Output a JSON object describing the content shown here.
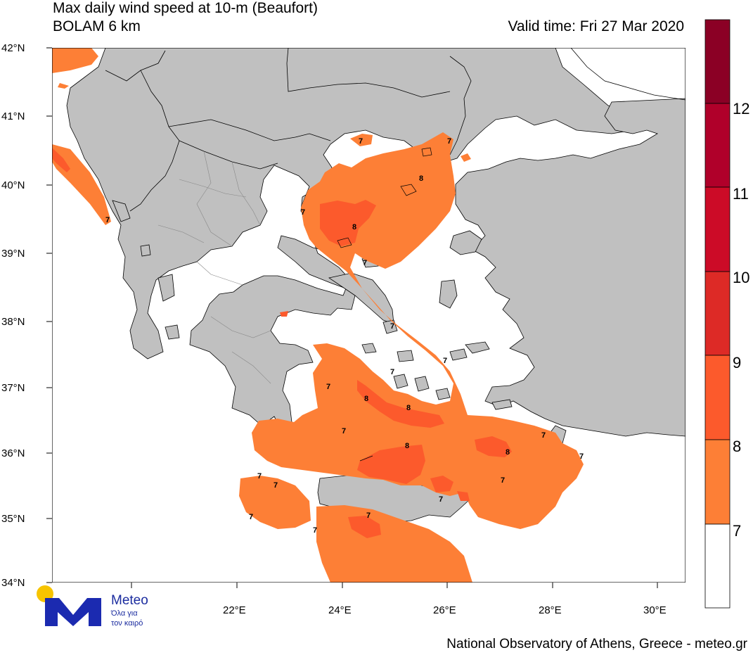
{
  "header": {
    "title_line1": "Max daily wind speed at 10-m (Beaufort)",
    "title_line2": "BOLAM 6 km",
    "valid_time": "Valid time: Fri 27 Mar 2020"
  },
  "axes": {
    "lat_labels": [
      "42°N",
      "41°N",
      "40°N",
      "39°N",
      "38°N",
      "37°N",
      "36°N",
      "35°N",
      "34°N"
    ],
    "lon_labels": [
      "22°E",
      "24°E",
      "26°E",
      "28°E",
      "30°E"
    ]
  },
  "colorbar": {
    "labels": [
      "12",
      "11",
      "10",
      "9",
      "8",
      "7"
    ],
    "colors": [
      "#8b0025",
      "#b0002a",
      "#cc0b27",
      "#dd2a26",
      "#fc5a2c",
      "#fd7f36",
      "#ffffff"
    ]
  },
  "contour_labels": [
    "7",
    "8"
  ],
  "colors": {
    "land": "#c0c0c0",
    "sea": "#ffffff",
    "beaufort_7": "#fd7f36",
    "beaufort_8": "#fc5a2c"
  },
  "logo": {
    "name": "Meteo",
    "tagline1": "Όλα για",
    "tagline2": "τον καιρό"
  },
  "credit": "National Observatory of Athens, Greece - meteo.gr"
}
